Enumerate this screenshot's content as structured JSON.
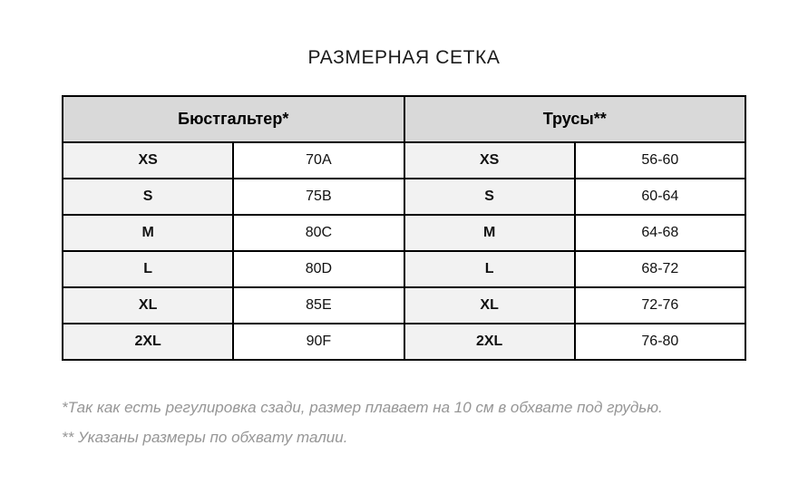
{
  "page_title": "РАЗМЕРНАЯ СЕТКА",
  "table": {
    "column_groups": [
      {
        "label": "Бюстгальтер*"
      },
      {
        "label": "Трусы**"
      }
    ],
    "rows": [
      {
        "bra_size": "XS",
        "bra_value": "70A",
        "panties_size": "XS",
        "panties_value": "56-60"
      },
      {
        "bra_size": "S",
        "bra_value": "75B",
        "panties_size": "S",
        "panties_value": "60-64"
      },
      {
        "bra_size": "M",
        "bra_value": "80C",
        "panties_size": "M",
        "panties_value": "64-68"
      },
      {
        "bra_size": "L",
        "bra_value": "80D",
        "panties_size": "L",
        "panties_value": "68-72"
      },
      {
        "bra_size": "XL",
        "bra_value": "85E",
        "panties_size": "XL",
        "panties_value": "72-76"
      },
      {
        "bra_size": "2XL",
        "bra_value": "90F",
        "panties_size": "2XL",
        "panties_value": "76-80"
      }
    ]
  },
  "footnotes": [
    "*Так как есть регулировка сзади, размер плавает на 10 см в обхвате под грудью.",
    "** Указаны размеры по обхвату талии."
  ],
  "colors": {
    "header_bg": "#d9d9d9",
    "size_cell_bg": "#f2f2f2",
    "value_cell_bg": "#ffffff",
    "border": "#000000",
    "footnote_text": "#969696",
    "title_text": "#1a1a1a"
  }
}
